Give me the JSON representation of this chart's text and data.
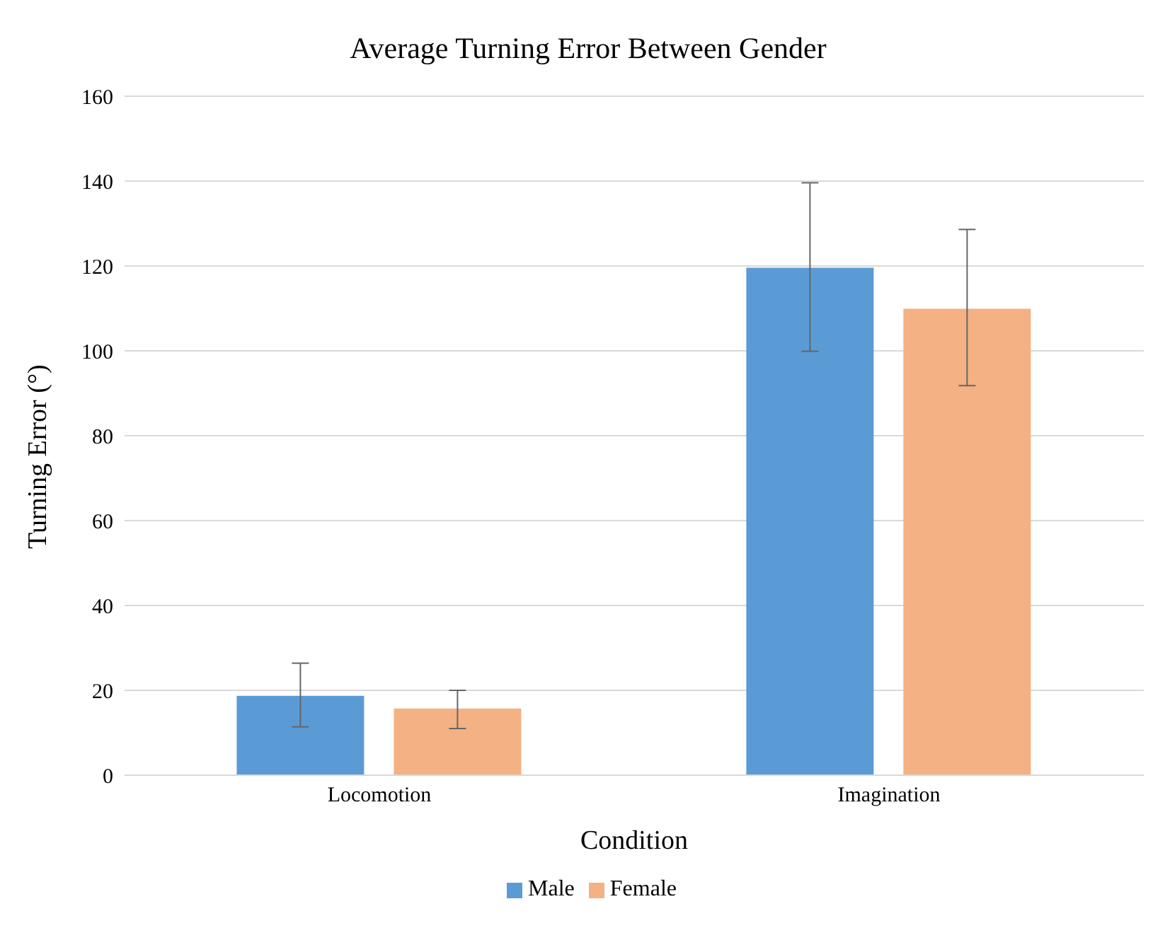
{
  "chart_data": {
    "type": "bar",
    "title": "Average Turning Error Between Gender",
    "xlabel": "Condition",
    "ylabel": "Turning Error (°)",
    "categories": [
      "Locomotion",
      "Imagination"
    ],
    "series": [
      {
        "name": "Male",
        "color": "#5b9bd5",
        "values": [
          18.7,
          119.6
        ],
        "errors": [
          [
            11.4,
            26.4
          ],
          [
            99.9,
            139.6
          ]
        ]
      },
      {
        "name": "Female",
        "color": "#f4b183",
        "values": [
          15.7,
          109.9
        ],
        "errors": [
          [
            11,
            20
          ],
          [
            91.8,
            128.6
          ]
        ]
      }
    ],
    "ylim": [
      0,
      160
    ],
    "yticks": [
      0,
      20,
      40,
      60,
      80,
      100,
      120,
      140,
      160
    ],
    "grid": "y",
    "legend": "bottom"
  }
}
